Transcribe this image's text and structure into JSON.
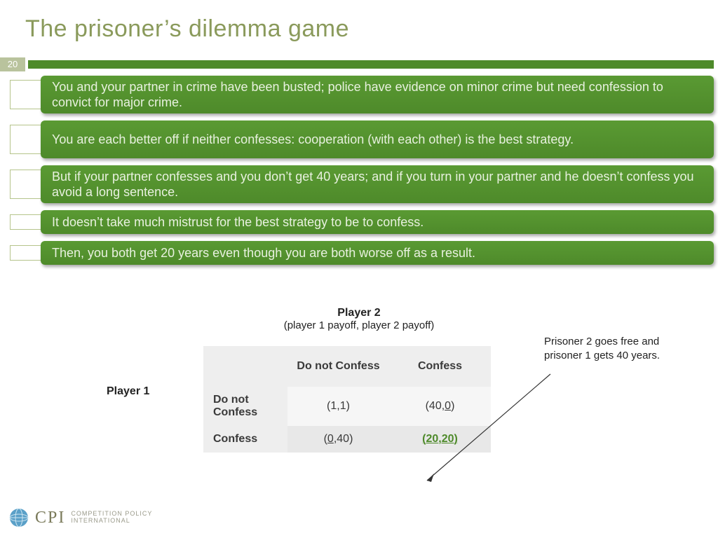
{
  "title": "The prisoner’s dilemma game",
  "page_number": "20",
  "accent_color": "#4e8a2a",
  "bullet_bg_gradient": [
    "#5a9a33",
    "#4e8a2a"
  ],
  "bullet_text_color": "#e8f1df",
  "bullet_fontsize": 18,
  "title_color": "#8a9a5b",
  "title_fontsize": 34,
  "bullets": [
    {
      "text": "You and your partner in crime have been busted; police have evidence on minor crime but need confession to convict for major crime.",
      "lines": 2
    },
    {
      "text": "You are each better off if neither confesses: cooperation (with each other) is the best strategy.",
      "lines": 2
    },
    {
      "text": "But if your partner confesses and you don’t get 40 years; and if you turn in your partner and he doesn’t confess you avoid a long sentence.",
      "lines": 2
    },
    {
      "text": "It doesn’t take much mistrust for the best strategy to be to confess.",
      "lines": 1
    },
    {
      "text": "Then, you both get 20 years even though you are both worse off as a result.",
      "lines": 1
    }
  ],
  "game": {
    "player2_label": "Player 2",
    "subtitle": "(player 1 payoff, player 2 payoff)",
    "player1_label": "Player 1",
    "col_headers": [
      "Do not Confess",
      "Confess"
    ],
    "row_headers": [
      "Do not Confess",
      "Confess"
    ],
    "cells": {
      "r0c0": {
        "a": "1",
        "a_u": false,
        "b": "1",
        "b_u": false,
        "nash": false,
        "shade": "light"
      },
      "r0c1": {
        "a": "40",
        "a_u": false,
        "b": "0",
        "b_u": true,
        "nash": false,
        "shade": "light"
      },
      "r1c0": {
        "a": "0",
        "a_u": true,
        "b": "40",
        "b_u": false,
        "nash": false,
        "shade": "dark"
      },
      "r1c1": {
        "a": "20",
        "a_u": true,
        "b": "20",
        "b_u": true,
        "nash": true,
        "shade": "dark"
      }
    },
    "header_bg": "#eeeeee",
    "light_bg": "#f6f6f6",
    "dark_bg": "#e8e8e8",
    "nash_color": "#4e8a2a"
  },
  "annotation": "Prisoner 2 goes free and prisoner 1 gets 40 years.",
  "logo": {
    "abbrev": "CPI",
    "line1": "COMPETITION POLICY",
    "line2": "INTERNATIONAL",
    "globe_color": "#5aa0c8"
  }
}
